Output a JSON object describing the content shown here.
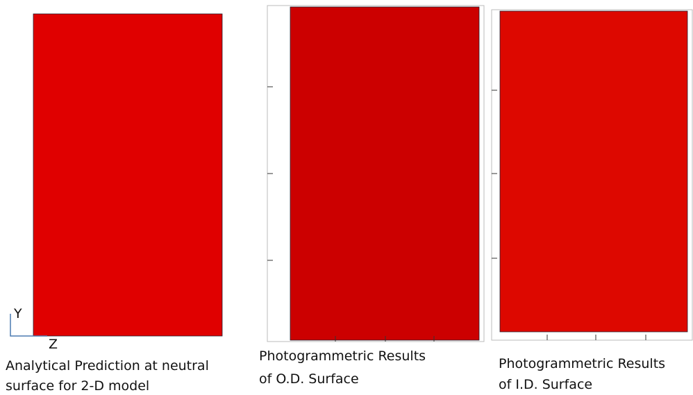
{
  "axes": {
    "y": "Y",
    "z": "Z"
  },
  "panels": [
    {
      "caption": [
        "Analytical Prediction at neutral",
        "surface for 2-D model"
      ]
    },
    {
      "caption": [
        "Photogrammetric Results",
        "of O.D. Surface"
      ]
    },
    {
      "caption": [
        "Photogrammetric Results",
        "of I.D. Surface"
      ]
    }
  ]
}
